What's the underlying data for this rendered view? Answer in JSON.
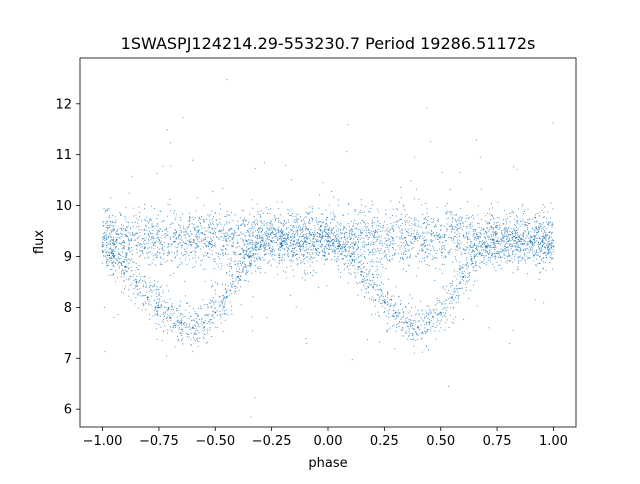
{
  "chart_data": {
    "type": "scatter",
    "title": "1SWASPJ124214.29-553230.7 Period 19286.51172s",
    "xlabel": "phase",
    "ylabel": "flux",
    "xlim": [
      -1.1,
      1.1
    ],
    "ylim": [
      5.65,
      12.9
    ],
    "x_ticks": [
      -1.0,
      -0.75,
      -0.5,
      -0.25,
      0.0,
      0.25,
      0.5,
      0.75,
      1.0
    ],
    "x_tick_labels": [
      "−1.00",
      "−0.75",
      "−0.50",
      "−0.25",
      "0.00",
      "0.25",
      "0.50",
      "0.75",
      "1.00"
    ],
    "y_ticks": [
      6,
      7,
      8,
      9,
      10,
      11,
      12
    ],
    "y_tick_labels": [
      "6",
      "7",
      "8",
      "9",
      "10",
      "11",
      "12"
    ],
    "grid": false,
    "legend": "none",
    "marker_color": "#1f77b4",
    "series": [
      {
        "description_points": "phase-folded light curve sampled along the visible envelope (two dips per cycle near phase -0.6 and 0.4, baseline near flux 9.3)",
        "x": [
          -1.0,
          -0.95,
          -0.9,
          -0.85,
          -0.8,
          -0.75,
          -0.7,
          -0.65,
          -0.6,
          -0.55,
          -0.5,
          -0.45,
          -0.4,
          -0.35,
          -0.3,
          -0.25,
          -0.2,
          -0.15,
          -0.1,
          -0.05,
          0.0,
          0.05,
          0.1,
          0.15,
          0.2,
          0.25,
          0.3,
          0.35,
          0.4,
          0.45,
          0.5,
          0.55,
          0.6,
          0.65,
          0.7,
          0.75,
          0.8,
          0.85,
          0.9,
          0.95,
          1.0
        ],
        "y": [
          9.2,
          9.0,
          8.8,
          8.5,
          8.2,
          8.0,
          7.8,
          7.7,
          7.6,
          7.7,
          7.9,
          8.2,
          8.6,
          9.0,
          9.2,
          9.3,
          9.3,
          9.3,
          9.3,
          9.3,
          9.3,
          9.2,
          9.0,
          8.7,
          8.4,
          8.1,
          7.9,
          7.7,
          7.6,
          7.7,
          7.9,
          8.2,
          8.6,
          9.0,
          9.2,
          9.3,
          9.3,
          9.3,
          9.3,
          9.3,
          9.2
        ]
      }
    ]
  }
}
